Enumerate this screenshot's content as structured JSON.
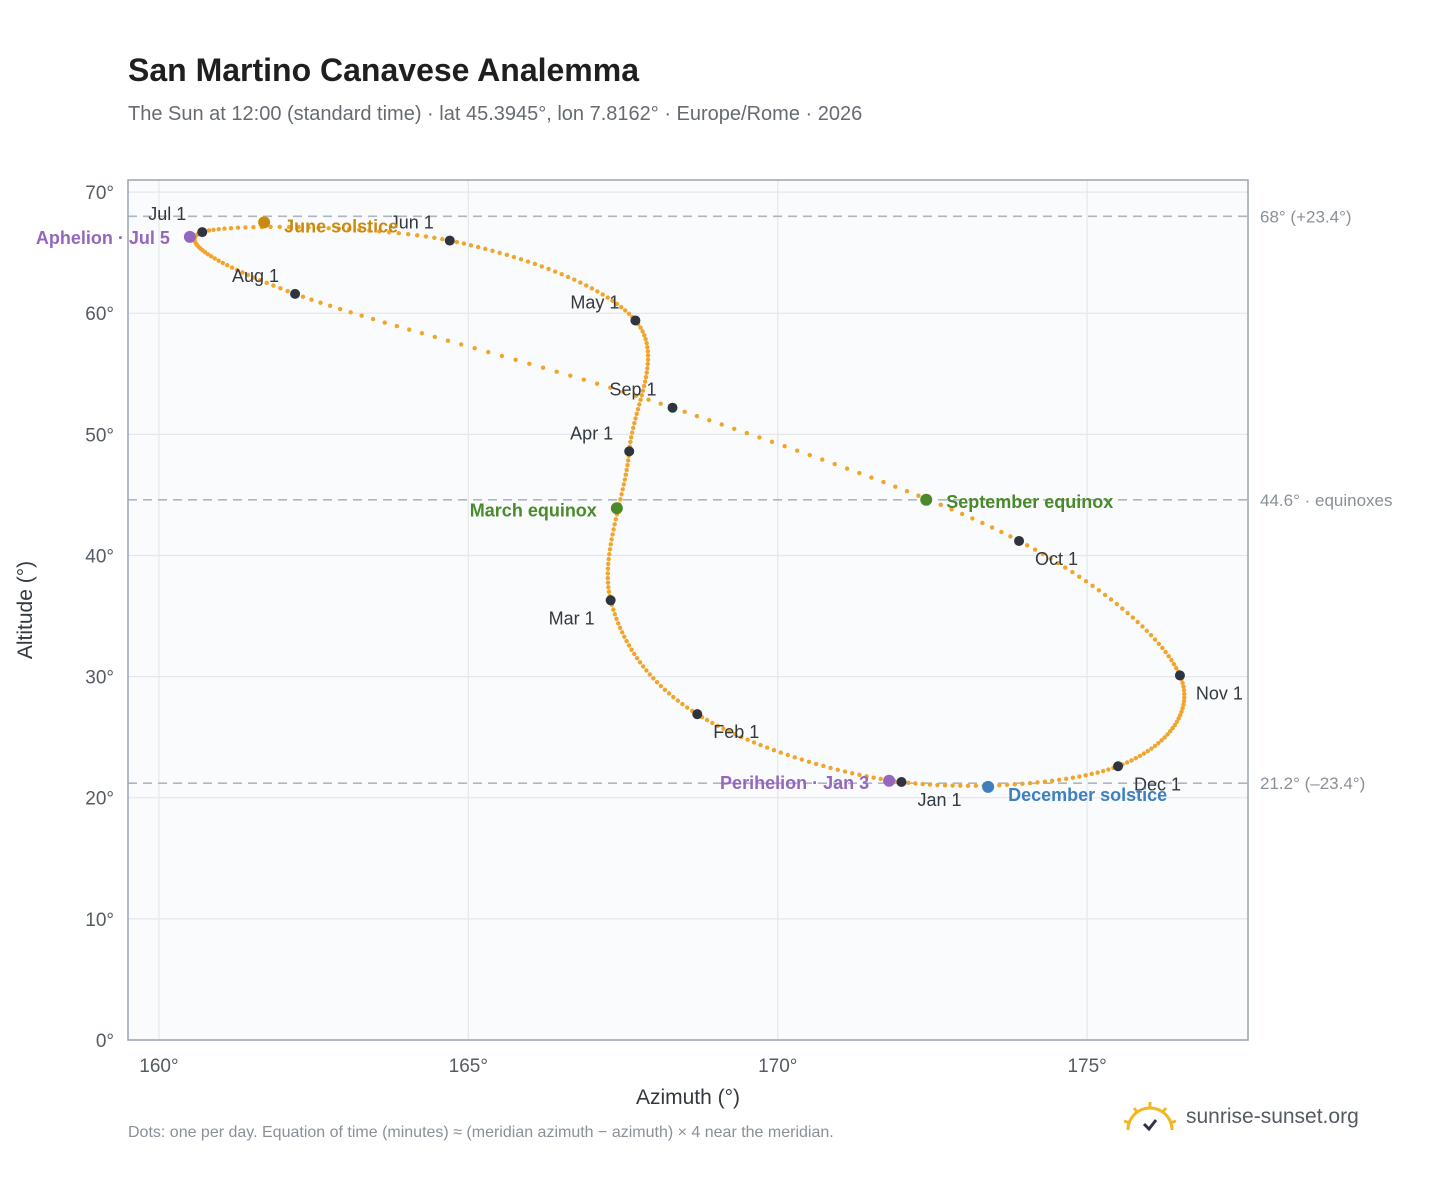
{
  "header": {
    "title": "San Martino Canavese Analemma",
    "subtitle": "The Sun at 12:00 (standard time) · lat 45.3945°, lon 7.8162° · Europe/Rome · 2026"
  },
  "footer": {
    "note": "Dots: one per day. Equation of time (minutes) ≈ (meridian azimuth − azimuth) × 4 near the meridian.",
    "brand": "sunrise-sunset.org"
  },
  "colors": {
    "curve": "#f2a52b",
    "month_dot": "#2f3540",
    "aphelion": "#9467bd",
    "june": "#c98a0f",
    "equinox": "#4a8a2a",
    "december": "#3f7fbf",
    "reference_line": "#b0b6be",
    "plot_bg": "#f9fbfd",
    "grid": "#e4e8ee",
    "frame": "#9aa4b2"
  },
  "chart_data": {
    "type": "scatter",
    "xlabel": "Azimuth (°)",
    "ylabel": "Altitude (°)",
    "xlim": [
      159.5,
      177.6
    ],
    "ylim": [
      0,
      71
    ],
    "x_ticks": [
      {
        "value": 160,
        "label": "160°"
      },
      {
        "value": 165,
        "label": "165°"
      },
      {
        "value": 170,
        "label": "170°"
      },
      {
        "value": 175,
        "label": "175°"
      }
    ],
    "y_ticks": [
      {
        "value": 0,
        "label": "0°"
      },
      {
        "value": 10,
        "label": "10°"
      },
      {
        "value": 20,
        "label": "20°"
      },
      {
        "value": 30,
        "label": "30°"
      },
      {
        "value": 40,
        "label": "40°"
      },
      {
        "value": 50,
        "label": "50°"
      },
      {
        "value": 60,
        "label": "60°"
      },
      {
        "value": 70,
        "label": "70°"
      }
    ],
    "grid": true,
    "reference_lines": [
      {
        "y": 68.0,
        "label": "68° (+23.4°)"
      },
      {
        "y": 44.6,
        "label": "44.6° · equinoxes"
      },
      {
        "y": 21.2,
        "label": "21.2° (–23.4°)"
      }
    ],
    "month_points": [
      {
        "label": "Jan 1",
        "x": 172.0,
        "y": 21.3
      },
      {
        "label": "Feb 1",
        "x": 168.7,
        "y": 26.9
      },
      {
        "label": "Mar 1",
        "x": 167.3,
        "y": 36.3
      },
      {
        "label": "Apr 1",
        "x": 167.6,
        "y": 48.6
      },
      {
        "label": "May 1",
        "x": 167.7,
        "y": 59.4
      },
      {
        "label": "Jun 1",
        "x": 164.7,
        "y": 66.0
      },
      {
        "label": "Jul 1",
        "x": 160.7,
        "y": 66.7
      },
      {
        "label": "Aug 1",
        "x": 162.2,
        "y": 61.6
      },
      {
        "label": "Sep 1",
        "x": 168.3,
        "y": 52.2
      },
      {
        "label": "Oct 1",
        "x": 173.9,
        "y": 41.2
      },
      {
        "label": "Nov 1",
        "x": 176.5,
        "y": 30.1
      },
      {
        "label": "Dec 1",
        "x": 175.5,
        "y": 22.6
      }
    ],
    "events": [
      {
        "label": "Aphelion · Jul 5",
        "x": 160.5,
        "y": 66.3,
        "kind": "aphelion"
      },
      {
        "label": "June solstice",
        "x": 161.7,
        "y": 67.5,
        "kind": "june"
      },
      {
        "label": "March equinox",
        "x": 167.4,
        "y": 43.9,
        "kind": "equinox"
      },
      {
        "label": "September equinox",
        "x": 172.4,
        "y": 44.6,
        "kind": "equinox"
      },
      {
        "label": "Perihelion · Jan 3",
        "x": 171.8,
        "y": 21.4,
        "kind": "aphelion"
      },
      {
        "label": "December solstice",
        "x": 173.4,
        "y": 20.9,
        "kind": "december"
      }
    ],
    "curve_dots_per_year": 365
  }
}
